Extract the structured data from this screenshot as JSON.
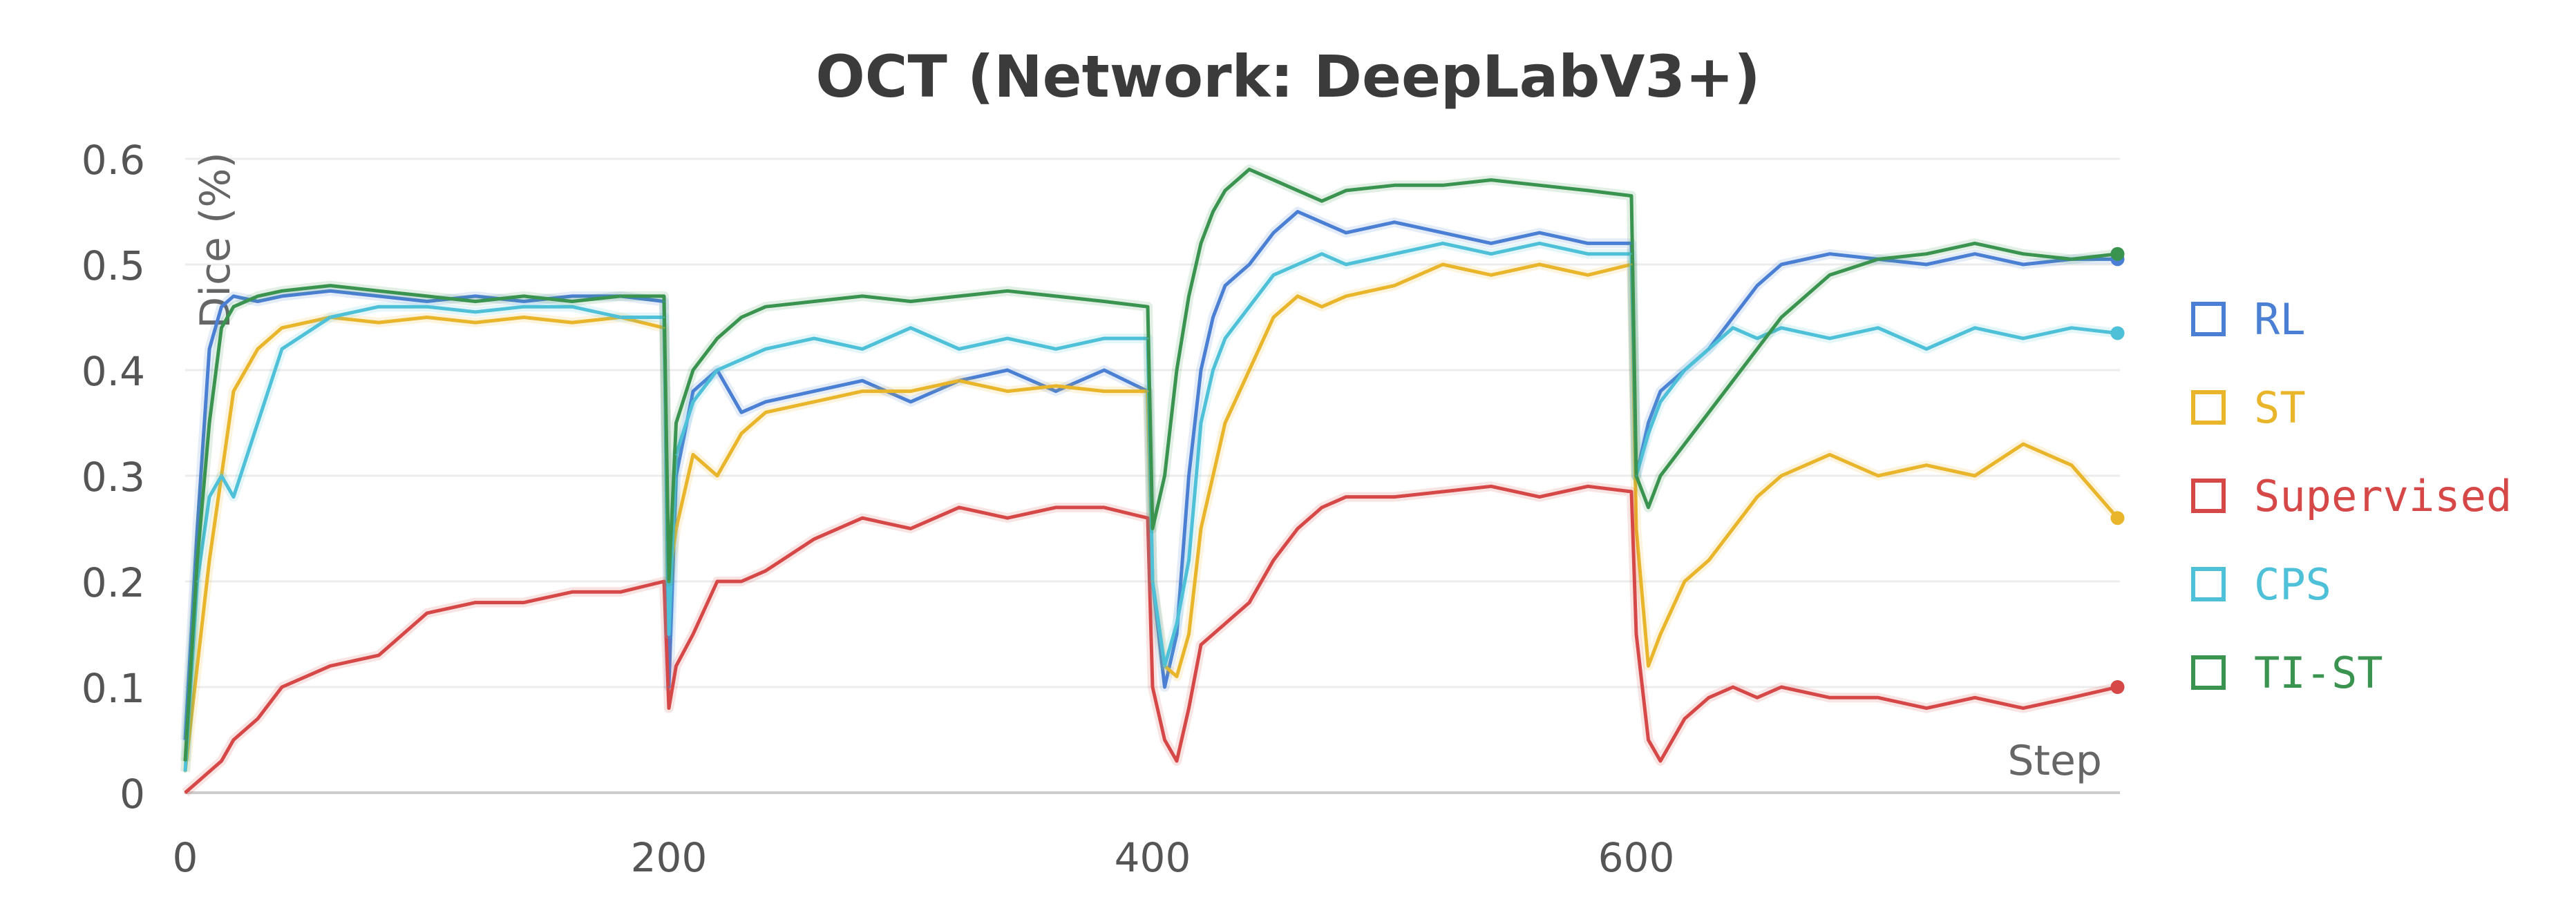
{
  "chart_data": {
    "type": "line",
    "title": "OCT (Network: DeepLabV3+)",
    "xlabel": "Step",
    "ylabel": "Dice (%)",
    "xlim": [
      0,
      800
    ],
    "ylim": [
      0,
      0.6
    ],
    "x_ticks": [
      0,
      200,
      400,
      600
    ],
    "y_ticks": [
      0,
      0.1,
      0.2,
      0.3,
      0.4,
      0.5,
      0.6
    ],
    "grid": "horizontal",
    "legend_position": "right",
    "series": [
      {
        "name": "RL",
        "color": "#4a7fd3",
        "x": [
          0,
          5,
          10,
          15,
          20,
          30,
          40,
          60,
          80,
          100,
          120,
          140,
          160,
          180,
          198,
          200,
          203,
          210,
          220,
          230,
          240,
          260,
          280,
          300,
          320,
          340,
          360,
          380,
          398,
          400,
          405,
          410,
          415,
          420,
          425,
          430,
          440,
          450,
          460,
          470,
          480,
          500,
          520,
          540,
          560,
          580,
          598,
          600,
          605,
          610,
          620,
          630,
          640,
          650,
          660,
          680,
          700,
          720,
          740,
          760,
          780,
          799
        ],
        "values": [
          0.05,
          0.25,
          0.42,
          0.46,
          0.47,
          0.465,
          0.47,
          0.475,
          0.47,
          0.465,
          0.47,
          0.465,
          0.47,
          0.47,
          0.465,
          0.1,
          0.3,
          0.38,
          0.4,
          0.36,
          0.37,
          0.38,
          0.39,
          0.37,
          0.39,
          0.4,
          0.38,
          0.4,
          0.38,
          0.2,
          0.1,
          0.15,
          0.3,
          0.4,
          0.45,
          0.48,
          0.5,
          0.53,
          0.55,
          0.54,
          0.53,
          0.54,
          0.53,
          0.52,
          0.53,
          0.52,
          0.52,
          0.3,
          0.35,
          0.38,
          0.4,
          0.42,
          0.45,
          0.48,
          0.5,
          0.51,
          0.505,
          0.5,
          0.51,
          0.5,
          0.505,
          0.505
        ]
      },
      {
        "name": "ST",
        "color": "#e8b52b",
        "x": [
          0,
          5,
          10,
          15,
          20,
          30,
          40,
          60,
          80,
          100,
          120,
          140,
          160,
          180,
          198,
          200,
          203,
          210,
          220,
          230,
          240,
          260,
          280,
          300,
          320,
          340,
          360,
          380,
          398,
          400,
          405,
          410,
          415,
          420,
          425,
          430,
          440,
          450,
          460,
          470,
          480,
          500,
          520,
          540,
          560,
          580,
          598,
          600,
          605,
          610,
          620,
          630,
          640,
          650,
          660,
          680,
          700,
          720,
          740,
          760,
          780,
          799
        ],
        "values": [
          0.02,
          0.12,
          0.22,
          0.3,
          0.38,
          0.42,
          0.44,
          0.45,
          0.445,
          0.45,
          0.445,
          0.45,
          0.445,
          0.45,
          0.44,
          0.2,
          0.25,
          0.32,
          0.3,
          0.34,
          0.36,
          0.37,
          0.38,
          0.38,
          0.39,
          0.38,
          0.385,
          0.38,
          0.38,
          0.2,
          0.12,
          0.11,
          0.15,
          0.25,
          0.3,
          0.35,
          0.4,
          0.45,
          0.47,
          0.46,
          0.47,
          0.48,
          0.5,
          0.49,
          0.5,
          0.49,
          0.5,
          0.25,
          0.12,
          0.15,
          0.2,
          0.22,
          0.25,
          0.28,
          0.3,
          0.32,
          0.3,
          0.31,
          0.3,
          0.33,
          0.31,
          0.26
        ]
      },
      {
        "name": "Supervised",
        "color": "#d64848",
        "x": [
          0,
          5,
          10,
          15,
          20,
          30,
          40,
          60,
          80,
          100,
          120,
          140,
          160,
          180,
          198,
          200,
          203,
          210,
          220,
          230,
          240,
          260,
          280,
          300,
          320,
          340,
          360,
          380,
          398,
          400,
          405,
          410,
          415,
          420,
          425,
          430,
          440,
          450,
          460,
          470,
          480,
          500,
          520,
          540,
          560,
          580,
          598,
          600,
          605,
          610,
          620,
          630,
          640,
          650,
          660,
          680,
          700,
          720,
          740,
          760,
          780,
          799
        ],
        "values": [
          0.0,
          0.01,
          0.02,
          0.03,
          0.05,
          0.07,
          0.1,
          0.12,
          0.13,
          0.17,
          0.18,
          0.18,
          0.19,
          0.19,
          0.2,
          0.08,
          0.12,
          0.15,
          0.2,
          0.2,
          0.21,
          0.24,
          0.26,
          0.25,
          0.27,
          0.26,
          0.27,
          0.27,
          0.26,
          0.1,
          0.05,
          0.03,
          0.08,
          0.14,
          0.15,
          0.16,
          0.18,
          0.22,
          0.25,
          0.27,
          0.28,
          0.28,
          0.285,
          0.29,
          0.28,
          0.29,
          0.285,
          0.15,
          0.05,
          0.03,
          0.07,
          0.09,
          0.1,
          0.09,
          0.1,
          0.09,
          0.09,
          0.08,
          0.09,
          0.08,
          0.09,
          0.1
        ]
      },
      {
        "name": "CPS",
        "color": "#4ec0d8",
        "x": [
          0,
          5,
          10,
          15,
          20,
          30,
          40,
          60,
          80,
          100,
          120,
          140,
          160,
          180,
          198,
          200,
          203,
          210,
          220,
          230,
          240,
          260,
          280,
          300,
          320,
          340,
          360,
          380,
          398,
          400,
          405,
          410,
          415,
          420,
          425,
          430,
          440,
          450,
          460,
          470,
          480,
          500,
          520,
          540,
          560,
          580,
          598,
          600,
          605,
          610,
          620,
          630,
          640,
          650,
          660,
          680,
          700,
          720,
          740,
          760,
          780,
          799
        ],
        "values": [
          0.02,
          0.2,
          0.28,
          0.3,
          0.28,
          0.35,
          0.42,
          0.45,
          0.46,
          0.46,
          0.455,
          0.46,
          0.46,
          0.45,
          0.45,
          0.15,
          0.32,
          0.37,
          0.4,
          0.41,
          0.42,
          0.43,
          0.42,
          0.44,
          0.42,
          0.43,
          0.42,
          0.43,
          0.43,
          0.2,
          0.12,
          0.16,
          0.22,
          0.35,
          0.4,
          0.43,
          0.46,
          0.49,
          0.5,
          0.51,
          0.5,
          0.51,
          0.52,
          0.51,
          0.52,
          0.51,
          0.51,
          0.3,
          0.34,
          0.37,
          0.4,
          0.42,
          0.44,
          0.43,
          0.44,
          0.43,
          0.44,
          0.42,
          0.44,
          0.43,
          0.44,
          0.435
        ]
      },
      {
        "name": "TI-ST",
        "color": "#3a9450",
        "x": [
          0,
          5,
          10,
          15,
          20,
          30,
          40,
          60,
          80,
          100,
          120,
          140,
          160,
          180,
          198,
          200,
          203,
          210,
          220,
          230,
          240,
          260,
          280,
          300,
          320,
          340,
          360,
          380,
          398,
          400,
          405,
          410,
          415,
          420,
          425,
          430,
          440,
          450,
          460,
          470,
          480,
          500,
          520,
          540,
          560,
          580,
          598,
          600,
          605,
          610,
          620,
          630,
          640,
          650,
          660,
          680,
          700,
          720,
          740,
          760,
          780,
          799
        ],
        "values": [
          0.03,
          0.22,
          0.35,
          0.44,
          0.46,
          0.47,
          0.475,
          0.48,
          0.475,
          0.47,
          0.465,
          0.47,
          0.465,
          0.47,
          0.47,
          0.2,
          0.35,
          0.4,
          0.43,
          0.45,
          0.46,
          0.465,
          0.47,
          0.465,
          0.47,
          0.475,
          0.47,
          0.465,
          0.46,
          0.25,
          0.3,
          0.4,
          0.47,
          0.52,
          0.55,
          0.57,
          0.59,
          0.58,
          0.57,
          0.56,
          0.57,
          0.575,
          0.575,
          0.58,
          0.575,
          0.57,
          0.565,
          0.3,
          0.27,
          0.3,
          0.33,
          0.36,
          0.39,
          0.42,
          0.45,
          0.49,
          0.505,
          0.51,
          0.52,
          0.51,
          0.505,
          0.51
        ]
      }
    ]
  }
}
